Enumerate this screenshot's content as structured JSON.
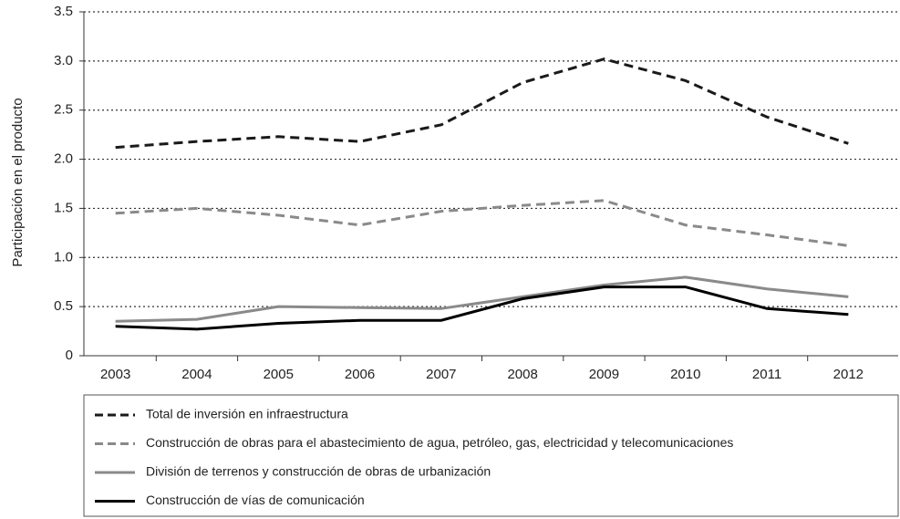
{
  "chart_data": {
    "type": "line",
    "y_label": "Participación en el producto",
    "categories": [
      "2003",
      "2004",
      "2005",
      "2006",
      "2007",
      "2008",
      "2009",
      "2010",
      "2011",
      "2012"
    ],
    "series": [
      {
        "name": "Total de inversión en infraestructura",
        "color": "#1a1a1a",
        "dashed": true,
        "values": [
          2.12,
          2.18,
          2.23,
          2.18,
          2.35,
          2.78,
          3.02,
          2.8,
          2.43,
          2.16
        ]
      },
      {
        "name": "Construcción de obras para el abastecimiento de agua, petróleo, gas, electricidad y telecomunicaciones",
        "color": "#8a8a8a",
        "dashed": true,
        "values": [
          1.45,
          1.5,
          1.43,
          1.33,
          1.47,
          1.53,
          1.58,
          1.33,
          1.23,
          1.12
        ]
      },
      {
        "name": "División de terrenos y construcción de obras de urbanización",
        "color": "#8a8a8a",
        "dashed": false,
        "values": [
          0.35,
          0.37,
          0.5,
          0.49,
          0.48,
          0.6,
          0.72,
          0.8,
          0.68,
          0.6
        ]
      },
      {
        "name": "Construcción de vías de comunicación",
        "color": "#000000",
        "dashed": false,
        "values": [
          0.3,
          0.27,
          0.33,
          0.36,
          0.36,
          0.58,
          0.7,
          0.7,
          0.48,
          0.42
        ]
      }
    ],
    "ylim": [
      0,
      3.5
    ],
    "yticks": [
      0,
      0.5,
      {
        "value": 1,
        "label": "1.0"
      },
      1.5,
      {
        "value": 2,
        "label": "2.0"
      },
      2.5,
      {
        "value": 3,
        "label": "3.0"
      },
      3.5
    ],
    "grid": true,
    "legend": "bottom"
  }
}
